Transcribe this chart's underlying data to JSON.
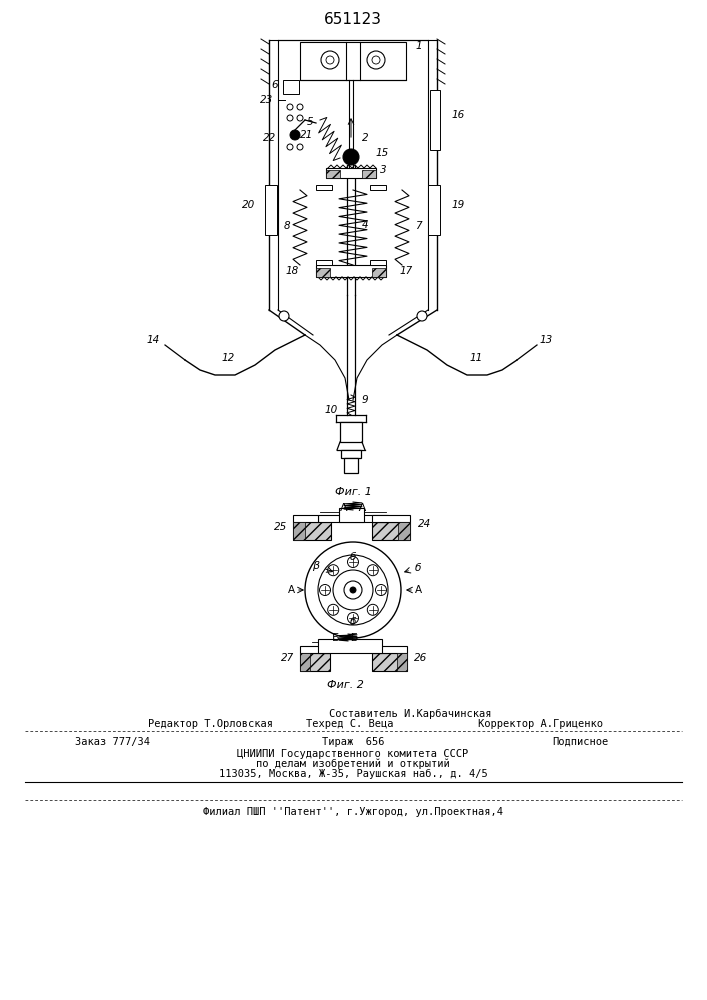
{
  "title": "651123",
  "bg_color": "#ffffff",
  "fig1_label": "Фиг. 1",
  "fig2_label": "Фиг. 2"
}
